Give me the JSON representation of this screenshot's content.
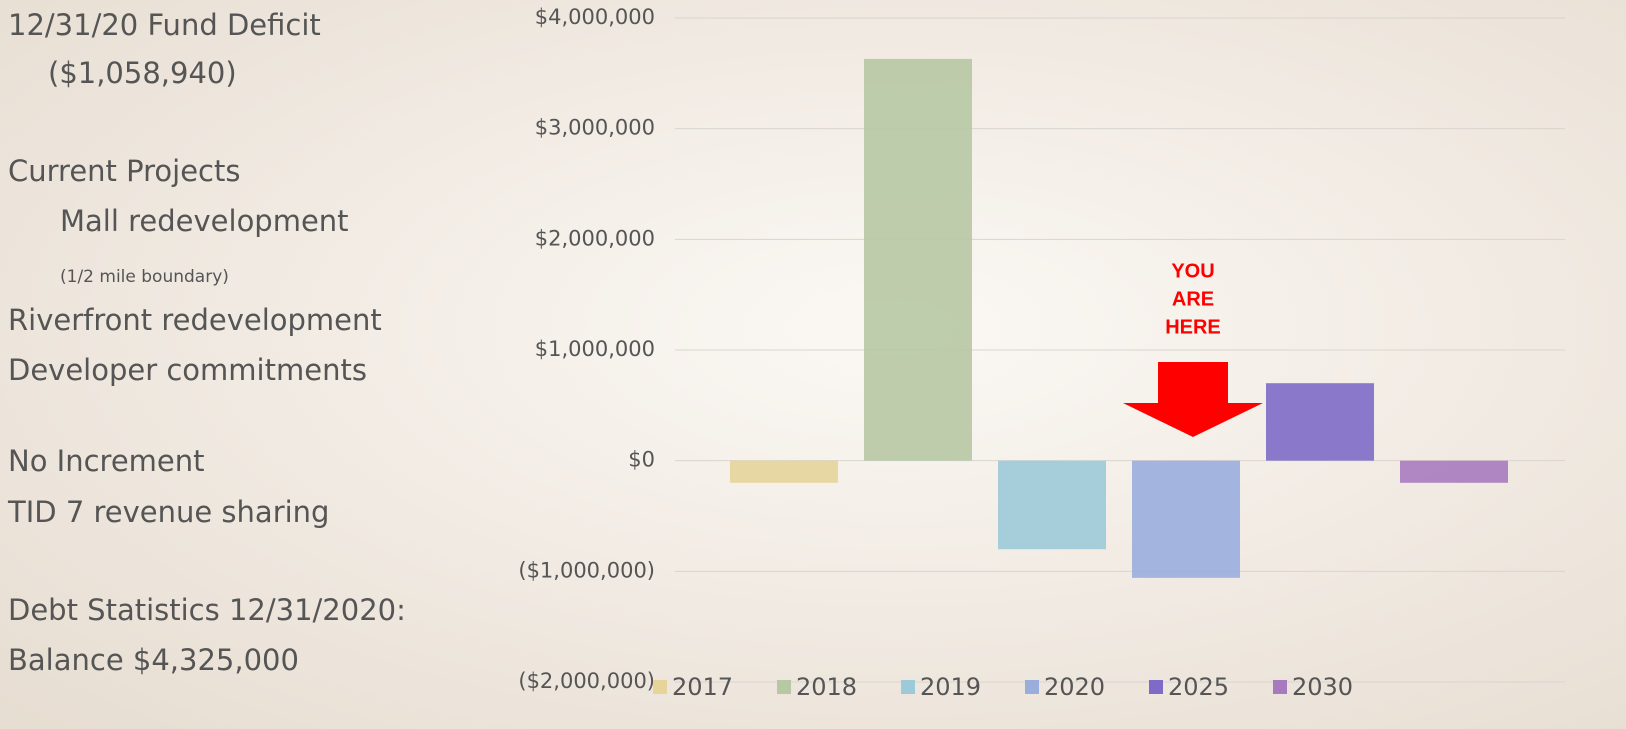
{
  "panel": {
    "lines": [
      "12/31/20 Fund Deficit",
      "($1,058,940)",
      "Current Projects",
      "Mall redevelopment",
      "(1/2 mile boundary)",
      "Riverfront redevelopment",
      "Developer commitments",
      "No Increment",
      "TID 7 revenue sharing",
      "Debt Statistics 12/31/2020:",
      "Balance $4,325,000"
    ]
  },
  "chart_data": {
    "type": "bar",
    "annotation": [
      "YOU",
      "ARE",
      "HERE"
    ],
    "series": [
      {
        "name": "2017",
        "color": "#e6d49a",
        "values": [
          -200000
        ]
      },
      {
        "name": "2018",
        "color": "#b7c8a4",
        "values": [
          3630000
        ]
      },
      {
        "name": "2019",
        "color": "#9ccad8",
        "values": [
          -800000
        ]
      },
      {
        "name": "2020",
        "color": "#9aaede",
        "values": [
          -1058940
        ]
      },
      {
        "name": "2025",
        "color": "#7e6bc7",
        "values": [
          700000
        ]
      },
      {
        "name": "2030",
        "color": "#a87bbf",
        "values": [
          -200000
        ]
      }
    ],
    "ylim": [
      -2000000,
      4000000
    ],
    "yticks": [
      {
        "value": -2000000,
        "label": "($2,000,000)"
      },
      {
        "value": -1000000,
        "label": "($1,000,000)"
      },
      {
        "value": 0,
        "label": "$0"
      },
      {
        "value": 1000000,
        "label": "$1,000,000"
      },
      {
        "value": 2000000,
        "label": "$2,000,000"
      },
      {
        "value": 3000000,
        "label": "$3,000,000"
      },
      {
        "value": 4000000,
        "label": "$4,000,000"
      }
    ],
    "grid": true
  }
}
